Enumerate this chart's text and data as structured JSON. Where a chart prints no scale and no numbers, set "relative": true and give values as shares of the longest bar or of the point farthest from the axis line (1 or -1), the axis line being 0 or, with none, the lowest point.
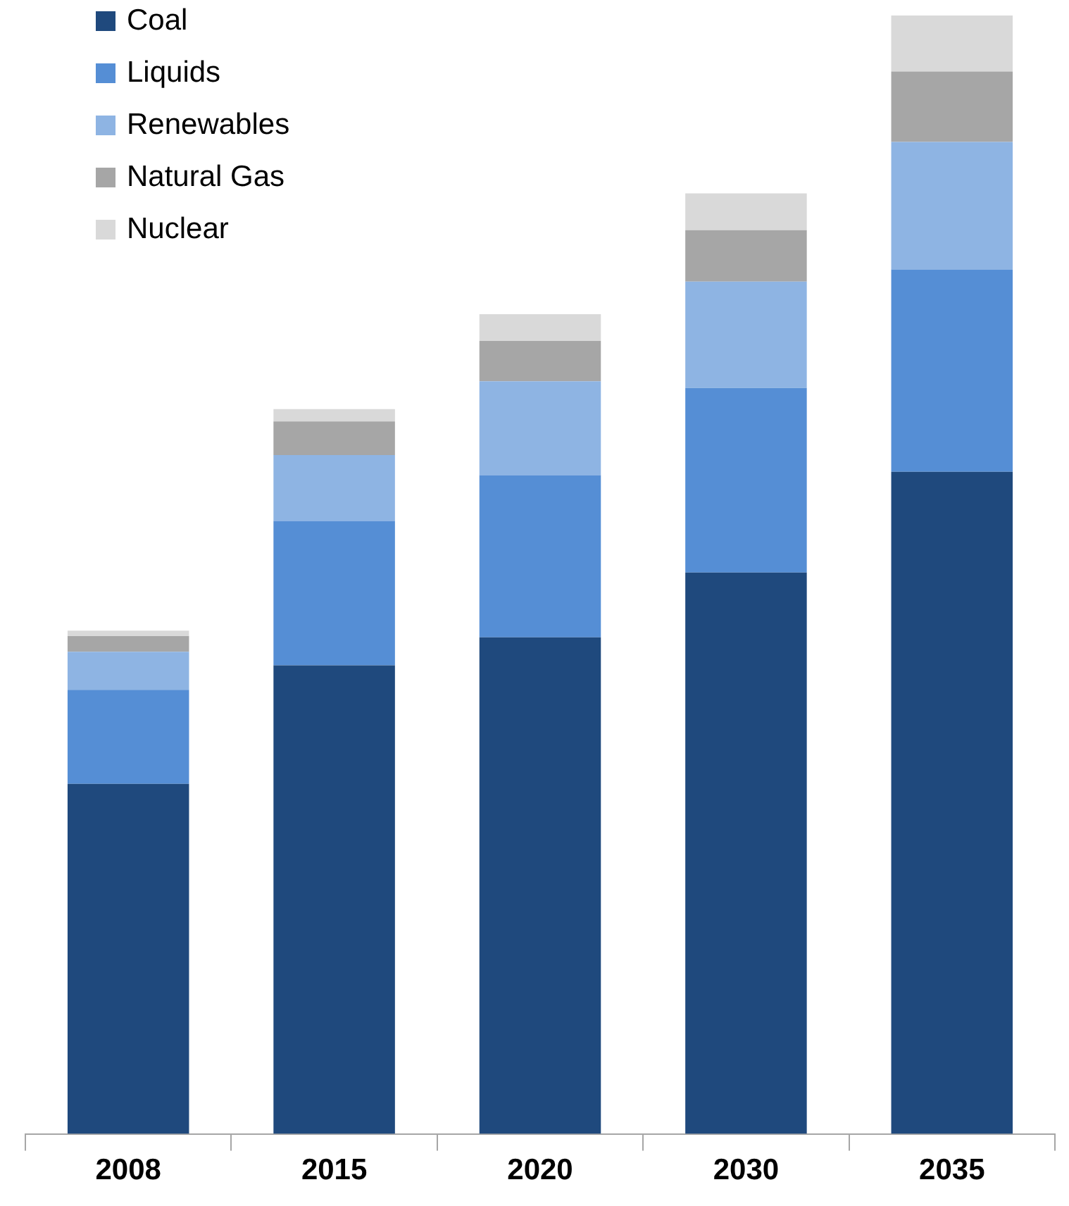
{
  "chart_data": {
    "type": "bar",
    "stacked": true,
    "relative": true,
    "categories": [
      "2008",
      "2015",
      "2020",
      "2030",
      "2035"
    ],
    "series": [
      {
        "name": "Coal",
        "color": "#1f497d",
        "values": [
          0.313,
          0.419,
          0.444,
          0.502,
          0.592
        ]
      },
      {
        "name": "Liquids",
        "color": "#558ed5",
        "values": [
          0.084,
          0.129,
          0.145,
          0.165,
          0.181
        ]
      },
      {
        "name": "Renewables",
        "color": "#8eb4e3",
        "values": [
          0.034,
          0.059,
          0.084,
          0.095,
          0.114
        ]
      },
      {
        "name": "Natural Gas",
        "color": "#a6a6a6",
        "values": [
          0.014,
          0.03,
          0.036,
          0.046,
          0.063
        ]
      },
      {
        "name": "Nuclear",
        "color": "#d9d9d9",
        "values": [
          0.005,
          0.011,
          0.024,
          0.033,
          0.05
        ]
      }
    ],
    "legend": "top left"
  }
}
